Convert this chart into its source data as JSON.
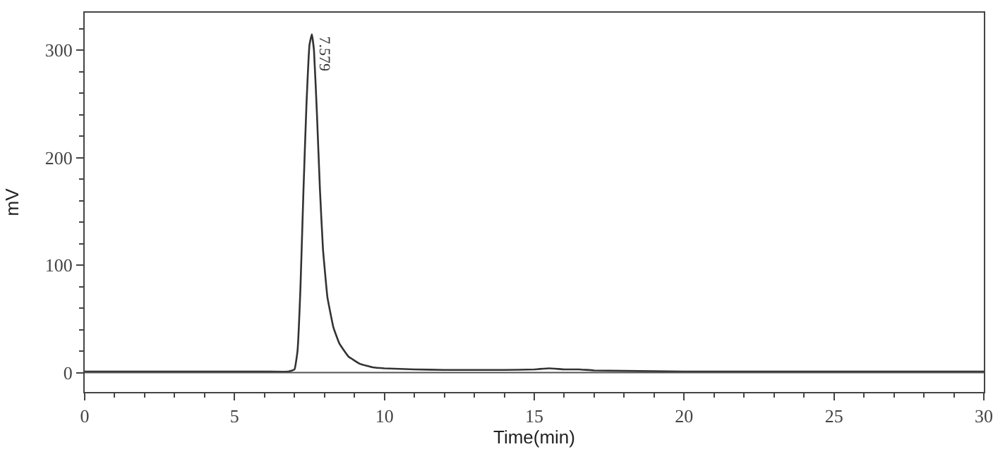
{
  "chart_data": {
    "type": "line",
    "xlabel": "Time(min)",
    "ylabel": "mV",
    "xlim": [
      0,
      30
    ],
    "xticks": [
      0,
      5,
      10,
      15,
      20,
      25,
      30
    ],
    "ylim": [
      -18,
      335
    ],
    "yticks": [
      0,
      100,
      200,
      300
    ],
    "x": [
      0,
      6,
      6.8,
      7.0,
      7.1,
      7.2,
      7.3,
      7.4,
      7.5,
      7.579,
      7.65,
      7.75,
      7.85,
      7.95,
      8.1,
      8.3,
      8.5,
      8.8,
      9.2,
      9.6,
      10,
      11,
      12,
      14,
      15,
      15.5,
      16,
      16.5,
      17,
      20,
      25,
      30
    ],
    "series": [
      {
        "color": "#333333",
        "values": [
          1,
          1,
          1,
          3,
          20,
          80,
          170,
          250,
          305,
          315,
          300,
          240,
          170,
          115,
          70,
          42,
          27,
          15,
          8,
          5,
          4,
          3,
          2.5,
          2.5,
          3,
          4,
          3,
          3,
          2,
          1,
          1,
          1
        ]
      }
    ],
    "ref_lines": [
      {
        "axis": "y",
        "value": 0,
        "color": "#555555"
      }
    ],
    "annotations": [
      {
        "text": "7.579",
        "x": 7.579,
        "y": 315
      }
    ],
    "legend": false,
    "marker": "none",
    "line_style": "solid"
  }
}
